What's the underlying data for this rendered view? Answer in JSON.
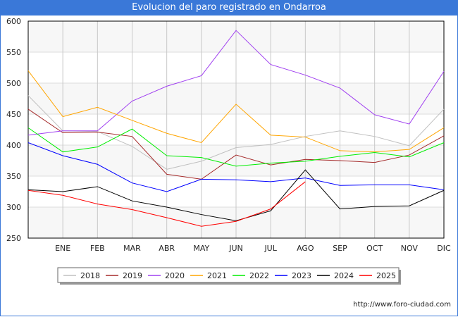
{
  "chart_data": {
    "type": "line",
    "title": "Evolucion del paro registrado en Ondarroa",
    "xlabel": "",
    "ylabel": "",
    "categories": [
      "",
      "ENE",
      "FEB",
      "MAR",
      "ABR",
      "MAY",
      "JUN",
      "JUL",
      "AGO",
      "SEP",
      "OCT",
      "NOV",
      "DIC"
    ],
    "ylim": [
      250,
      600
    ],
    "yticks": [
      250,
      300,
      350,
      400,
      450,
      500,
      550,
      600
    ],
    "grid": true,
    "legend_position": "bottom",
    "series": [
      {
        "name": "2018",
        "color": "#c0c0c0",
        "values": [
          480,
          423,
          422,
          398,
          361,
          374,
          396,
          401,
          414,
          423,
          414,
          399,
          458
        ]
      },
      {
        "name": "2019",
        "color": "#a52a2a",
        "values": [
          458,
          420,
          421,
          414,
          353,
          345,
          384,
          368,
          377,
          375,
          372,
          384,
          415
        ]
      },
      {
        "name": "2020",
        "color": "#a040f0",
        "values": [
          416,
          423,
          423,
          471,
          495,
          512,
          585,
          530,
          513,
          492,
          449,
          434,
          519
        ]
      },
      {
        "name": "2021",
        "color": "#ffa500",
        "values": [
          520,
          446,
          461,
          440,
          419,
          404,
          466,
          416,
          413,
          391,
          389,
          393,
          428
        ]
      },
      {
        "name": "2022",
        "color": "#00ee00",
        "values": [
          428,
          389,
          397,
          426,
          383,
          380,
          366,
          371,
          374,
          382,
          388,
          381,
          404
        ]
      },
      {
        "name": "2023",
        "color": "#0000ff",
        "values": [
          404,
          383,
          369,
          339,
          325,
          345,
          344,
          341,
          347,
          335,
          336,
          336,
          328
        ]
      },
      {
        "name": "2024",
        "color": "#000000",
        "values": [
          328,
          325,
          333,
          310,
          300,
          288,
          278,
          294,
          360,
          297,
          301,
          302,
          327
        ]
      },
      {
        "name": "2025",
        "color": "#ff0000",
        "values": [
          327,
          319,
          305,
          296,
          283,
          269,
          277,
          297,
          341,
          null,
          null,
          null,
          null
        ]
      }
    ]
  },
  "footer": {
    "url": "http://www.foro-ciudad.com"
  }
}
